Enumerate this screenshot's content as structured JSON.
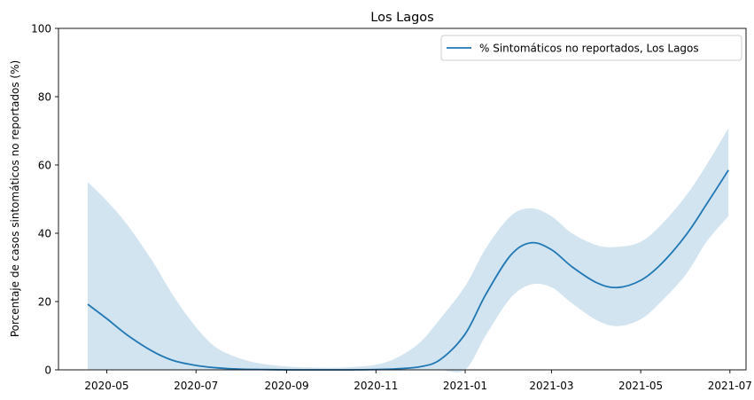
{
  "chart_data": {
    "type": "line",
    "title": "Los Lagos",
    "xlabel": "",
    "ylabel": "Porcentaje de casos sintomáticos no reportados (%)",
    "ylim": [
      0,
      100
    ],
    "xlim": [
      "2020-03-29",
      "2021-07-12"
    ],
    "grid": false,
    "legend_position": "top-right",
    "x_ticks": [
      "2020-05",
      "2020-07",
      "2020-09",
      "2020-11",
      "2021-01",
      "2021-03",
      "2021-05",
      "2021-07"
    ],
    "y_ticks": [
      0,
      20,
      40,
      60,
      80,
      100
    ],
    "colors": {
      "line": "#1f77b4",
      "band": "#1f77b4",
      "band_opacity": 0.2
    },
    "series": [
      {
        "name": "% Sintomáticos no reportados, Los Lagos",
        "x": [
          "2020-04-18",
          "2020-05-01",
          "2020-05-15",
          "2020-06-01",
          "2020-06-15",
          "2020-07-01",
          "2020-07-15",
          "2020-08-01",
          "2020-08-15",
          "2020-09-01",
          "2020-09-15",
          "2020-10-01",
          "2020-10-15",
          "2020-11-01",
          "2020-11-15",
          "2020-12-01",
          "2020-12-15",
          "2021-01-01",
          "2021-01-15",
          "2021-02-01",
          "2021-02-15",
          "2021-03-01",
          "2021-03-15",
          "2021-04-01",
          "2021-04-15",
          "2021-05-01",
          "2021-05-15",
          "2021-06-01",
          "2021-06-15",
          "2021-06-30"
        ],
        "y": [
          19.2,
          15.0,
          10.2,
          5.5,
          2.8,
          1.3,
          0.6,
          0.2,
          0.1,
          0.0,
          0.0,
          0.0,
          0.0,
          0.1,
          0.3,
          0.9,
          3.0,
          10.5,
          22.0,
          33.5,
          37.2,
          35.2,
          30.2,
          25.5,
          24.1,
          26.2,
          31.0,
          39.5,
          48.5,
          58.5
        ],
        "lower": [
          0.0,
          0.0,
          0.0,
          0.0,
          0.0,
          0.0,
          0.0,
          0.0,
          0.0,
          0.0,
          0.0,
          0.0,
          0.0,
          0.0,
          0.0,
          0.0,
          0.0,
          0.0,
          10.0,
          21.0,
          25.0,
          24.2,
          19.5,
          14.5,
          12.8,
          14.8,
          20.0,
          28.0,
          37.5,
          45.0
        ],
        "upper": [
          55.0,
          49.5,
          42.5,
          32.0,
          22.0,
          12.5,
          6.5,
          3.2,
          1.8,
          1.0,
          0.7,
          0.6,
          0.8,
          1.5,
          3.5,
          8.0,
          15.0,
          24.5,
          35.5,
          45.0,
          47.3,
          45.0,
          40.0,
          36.5,
          36.0,
          37.5,
          42.5,
          51.0,
          60.0,
          70.8
        ]
      }
    ]
  }
}
